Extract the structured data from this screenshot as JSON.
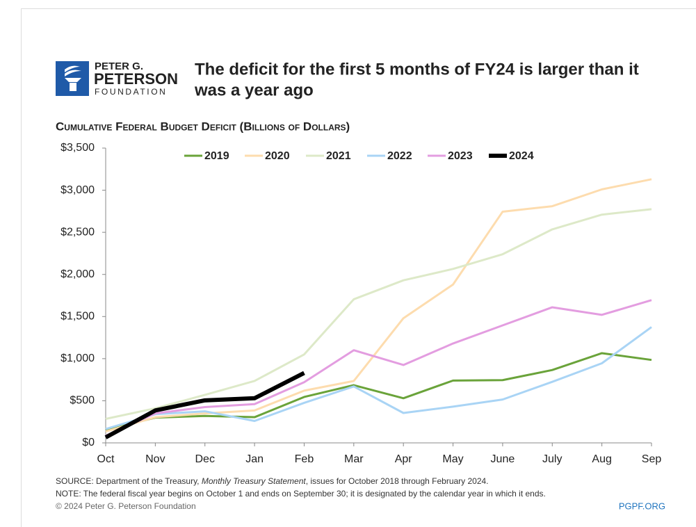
{
  "chart_data": {
    "type": "line",
    "brand": [
      "PETER G.",
      "PETERSON",
      "FOUNDATION"
    ],
    "title_lines": [
      "The deficit for the first 5 months of FY24 is larger than it",
      "was a year ago"
    ],
    "subtitle": "Cumulative Federal Budget Deficit (Billions of Dollars)",
    "categories": [
      "Oct",
      "Nov",
      "Dec",
      "Jan",
      "Feb",
      "Mar",
      "Apr",
      "May",
      "June",
      "July",
      "Aug",
      "Sep"
    ],
    "series": [
      {
        "name": "2019",
        "color": "#6aa33a",
        "width": 3,
        "values": [
          155,
          300,
          320,
          305,
          545,
          685,
          530,
          740,
          745,
          865,
          1065,
          985
        ]
      },
      {
        "name": "2020",
        "color": "#fddcae",
        "width": 3,
        "values": [
          135,
          305,
          350,
          385,
          620,
          735,
          1480,
          1880,
          2745,
          2810,
          3010,
          3130
        ]
      },
      {
        "name": "2021",
        "color": "#dde9c8",
        "width": 3,
        "values": [
          285,
          410,
          570,
          735,
          1050,
          1705,
          1930,
          2065,
          2240,
          2535,
          2710,
          2775
        ]
      },
      {
        "name": "2022",
        "color": "#a9d4f5",
        "width": 3,
        "values": [
          165,
          340,
          375,
          260,
          475,
          670,
          355,
          430,
          515,
          725,
          945,
          1375
        ]
      },
      {
        "name": "2023",
        "color": "#e39de0",
        "width": 3,
        "values": [
          85,
          350,
          425,
          460,
          720,
          1100,
          925,
          1180,
          1395,
          1610,
          1520,
          1695
        ]
      },
      {
        "name": "2024",
        "color": "#000000",
        "width": 6,
        "values": [
          65,
          385,
          505,
          530,
          830,
          null,
          null,
          null,
          null,
          null,
          null,
          null
        ]
      }
    ],
    "ylim": [
      0,
      3500
    ],
    "yticks": [
      {
        "value": 0,
        "label": "$0"
      },
      {
        "value": 500,
        "label": "$500"
      },
      {
        "value": 1000,
        "label": "$1,000"
      },
      {
        "value": 1500,
        "label": "$1,500"
      },
      {
        "value": 2000,
        "label": "$2,000"
      },
      {
        "value": 2500,
        "label": "$2,500"
      },
      {
        "value": 3000,
        "label": "$3,000"
      },
      {
        "value": 3500,
        "label": "$3,500"
      }
    ],
    "source": [
      "SOURCE: Department of the Treasury, ",
      "Monthly Treasury Statement",
      ", issues for October 2018 through February 2024."
    ],
    "note": "NOTE: The federal fiscal year begins on October 1 and ends on September 30; it is designated by the calendar year in which it ends.",
    "copyright": "© 2024 Peter G. Peterson Foundation",
    "site": "PGPF.ORG"
  }
}
